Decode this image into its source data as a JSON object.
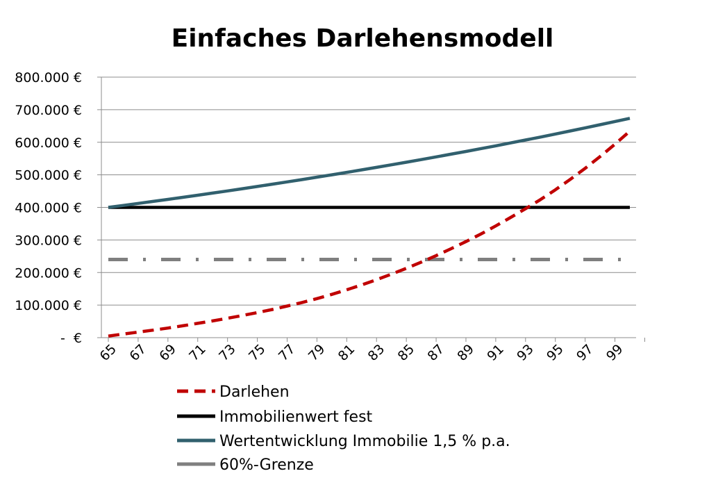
{
  "chart_data": {
    "type": "line",
    "title": "Einfaches Darlehensmodell",
    "xlabel": "",
    "ylabel": "",
    "x": [
      65,
      66,
      67,
      68,
      69,
      70,
      71,
      72,
      73,
      74,
      75,
      76,
      77,
      78,
      79,
      80,
      81,
      82,
      83,
      84,
      85,
      86,
      87,
      88,
      89,
      90,
      91,
      92,
      93,
      94,
      95,
      96,
      97,
      98,
      99,
      100
    ],
    "x_tick_labels": [
      "65",
      "67",
      "69",
      "71",
      "73",
      "75",
      "77",
      "79",
      "81",
      "83",
      "85",
      "87",
      "89",
      "91",
      "93",
      "95",
      "97",
      "99"
    ],
    "y_tick_labels": [
      "-  €",
      "100.000 €",
      "200.000 €",
      "300.000 €",
      "400.000 €",
      "500.000 €",
      "600.000 €",
      "700.000 €",
      "800.000 €"
    ],
    "y_ticks": [
      0,
      100000,
      200000,
      300000,
      400000,
      500000,
      600000,
      700000,
      800000
    ],
    "ylim": [
      0,
      800000
    ],
    "grid": true,
    "legend_position": "bottom",
    "series": [
      {
        "name": "Darlehen",
        "color": "#c00000",
        "style": "dashed",
        "values": [
          5000,
          11000,
          17000,
          23000,
          29500,
          36500,
          44000,
          51500,
          59500,
          68000,
          77000,
          86500,
          97000,
          108000,
          120000,
          133000,
          147000,
          162000,
          178000,
          195000,
          213000,
          232000,
          252000,
          273000,
          295000,
          318000,
          343000,
          369000,
          396000,
          424000,
          454000,
          486000,
          520000,
          556000,
          594000,
          634000
        ]
      },
      {
        "name": "Immobilienwert fest",
        "color": "#000000",
        "style": "solid",
        "values": [
          400000,
          400000,
          400000,
          400000,
          400000,
          400000,
          400000,
          400000,
          400000,
          400000,
          400000,
          400000,
          400000,
          400000,
          400000,
          400000,
          400000,
          400000,
          400000,
          400000,
          400000,
          400000,
          400000,
          400000,
          400000,
          400000,
          400000,
          400000,
          400000,
          400000,
          400000,
          400000,
          400000,
          400000,
          400000,
          400000
        ]
      },
      {
        "name": "Wertentwicklung Immobilie 1,5 % p.a.",
        "color": "#31606e",
        "style": "solid",
        "values": [
          400000,
          406000,
          412090,
          418271,
          424545,
          430913,
          437377,
          443938,
          450597,
          457356,
          464216,
          471179,
          478247,
          485421,
          492702,
          500093,
          507594,
          515208,
          522936,
          530780,
          538742,
          546823,
          555025,
          563351,
          571801,
          580378,
          589083,
          597920,
          606889,
          615992,
          625232,
          634610,
          644129,
          653791,
          663598,
          673552
        ]
      },
      {
        "name": "60%-Grenze",
        "color": "#7f7f7f",
        "style": "dashdot",
        "values": [
          240000,
          240000,
          240000,
          240000,
          240000,
          240000,
          240000,
          240000,
          240000,
          240000,
          240000,
          240000,
          240000,
          240000,
          240000,
          240000,
          240000,
          240000,
          240000,
          240000,
          240000,
          240000,
          240000,
          240000,
          240000,
          240000,
          240000,
          240000,
          240000,
          240000,
          240000,
          240000,
          240000,
          240000,
          240000,
          240000
        ]
      }
    ]
  }
}
